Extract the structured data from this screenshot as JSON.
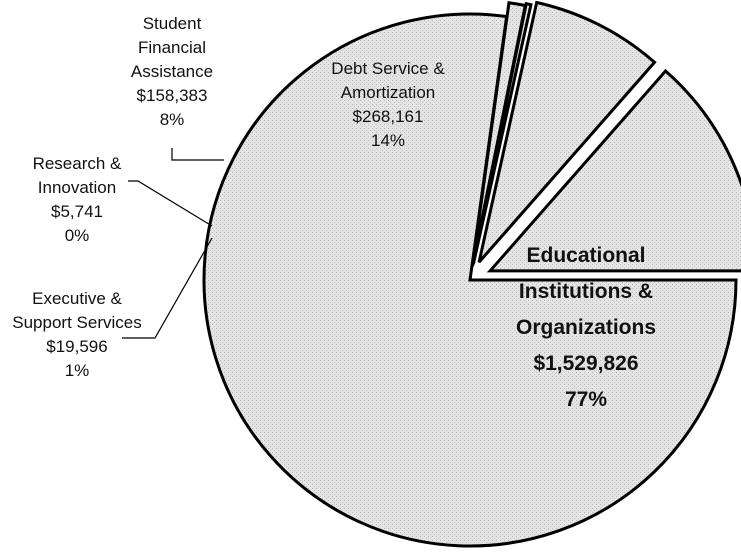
{
  "chart_data": {
    "type": "pie",
    "title": "",
    "colors": {
      "slice_fill": "#e2e2e2",
      "outline": "#000000",
      "text": "#111111"
    },
    "slices": [
      {
        "name": "Educational Institutions & Organizations",
        "value": 1529826,
        "value_label": "$1,529,826",
        "percent_label": "77%",
        "exploded": false,
        "label_lines": [
          "Educational",
          "Institutions &",
          "Organizations",
          "$1,529,826",
          "77%"
        ]
      },
      {
        "name": "Executive & Support Services",
        "value": 19596,
        "value_label": "$19,596",
        "percent_label": "1%",
        "exploded": true,
        "label_lines": [
          "Executive &",
          "Support Services",
          "$19,596",
          "1%"
        ]
      },
      {
        "name": "Research & Innovation",
        "value": 5741,
        "value_label": "$5,741",
        "percent_label": "0%",
        "exploded": true,
        "label_lines": [
          "Research &",
          "Innovation",
          "$5,741",
          "0%"
        ]
      },
      {
        "name": "Student Financial Assistance",
        "value": 158383,
        "value_label": "$158,383",
        "percent_label": "8%",
        "exploded": true,
        "label_lines": [
          "Student",
          "Financial",
          "Assistance",
          "$158,383",
          "8%"
        ]
      },
      {
        "name": "Debt Service & Amortization",
        "value": 268161,
        "value_label": "$268,161",
        "percent_label": "14%",
        "exploded": true,
        "label_lines": [
          "Debt Service &",
          "Amortization",
          "$268,161",
          "14%"
        ]
      }
    ]
  }
}
